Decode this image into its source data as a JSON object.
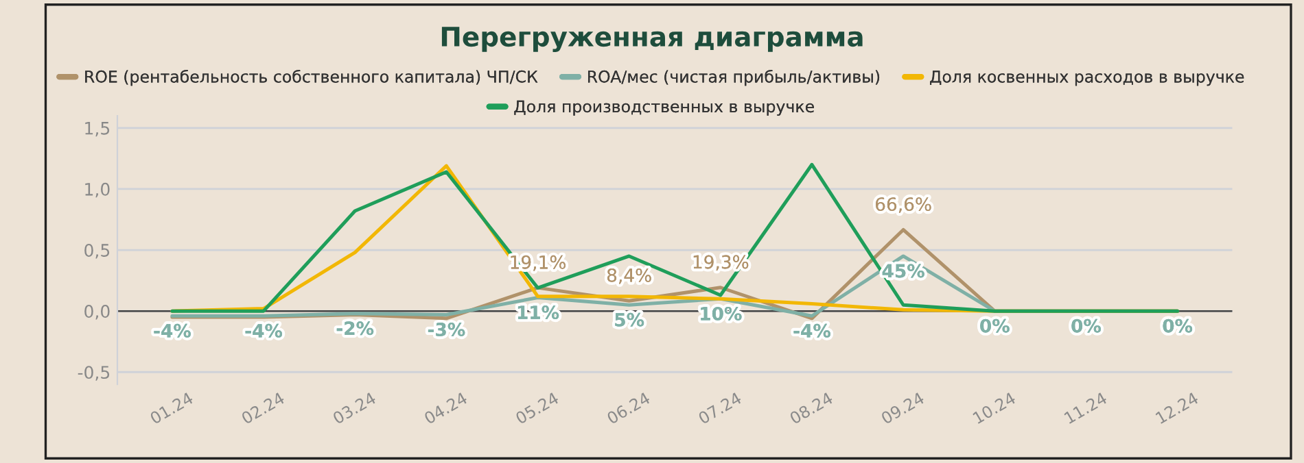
{
  "chart_data": {
    "type": "line",
    "title": "Перегруженная диаграмма",
    "categories": [
      "01.24",
      "02.24",
      "03.24",
      "04.24",
      "05.24",
      "06.24",
      "07.24",
      "08.24",
      "09.24",
      "10.24",
      "11.24",
      "12.24"
    ],
    "series": [
      {
        "name": "ROE (рентабельность собственного капитала) ЧП/СК",
        "color": "#b0926a",
        "values": [
          -0.05,
          -0.05,
          -0.03,
          -0.06,
          0.191,
          0.084,
          0.193,
          -0.06,
          0.666,
          0,
          0,
          0
        ],
        "value_labels": [
          null,
          null,
          null,
          null,
          "19,1%",
          "8,4%",
          "19,3%",
          null,
          "66,6%",
          null,
          null,
          null
        ]
      },
      {
        "name": "ROA/мес (чистая прибыль/активы)",
        "color": "#7fb0a6",
        "values": [
          -0.04,
          -0.04,
          -0.02,
          -0.03,
          0.11,
          0.05,
          0.1,
          -0.04,
          0.45,
          0,
          0,
          0
        ],
        "value_labels": [
          "-4%",
          "-4%",
          "-2%",
          "-3%",
          "11%",
          "5%",
          "10%",
          "-4%",
          "45%",
          "0%",
          "0%",
          "0%"
        ]
      },
      {
        "name": "Доля косвенных расходов в выручке",
        "color": "#f2b705",
        "values": [
          0,
          0.02,
          0.48,
          1.19,
          0.12,
          0.12,
          0.1,
          0.06,
          0.01,
          0,
          0,
          0
        ]
      },
      {
        "name": "Доля производственных в выручке",
        "color": "#1f9e5a",
        "values": [
          0,
          0,
          0.82,
          1.14,
          0.19,
          0.45,
          0.13,
          1.2,
          0.05,
          0,
          0,
          0
        ]
      }
    ],
    "ylim": [
      -0.6,
      1.6
    ],
    "yticks": [
      {
        "value": -0.5,
        "label": "-0,5"
      },
      {
        "value": 0,
        "label": "0,0"
      },
      {
        "value": 0.5,
        "label": "0,5"
      },
      {
        "value": 1.0,
        "label": "1,0"
      },
      {
        "value": 1.5,
        "label": "1,5"
      }
    ],
    "grid": "y",
    "legend": "top",
    "marker": "none",
    "line_style": "solid"
  }
}
